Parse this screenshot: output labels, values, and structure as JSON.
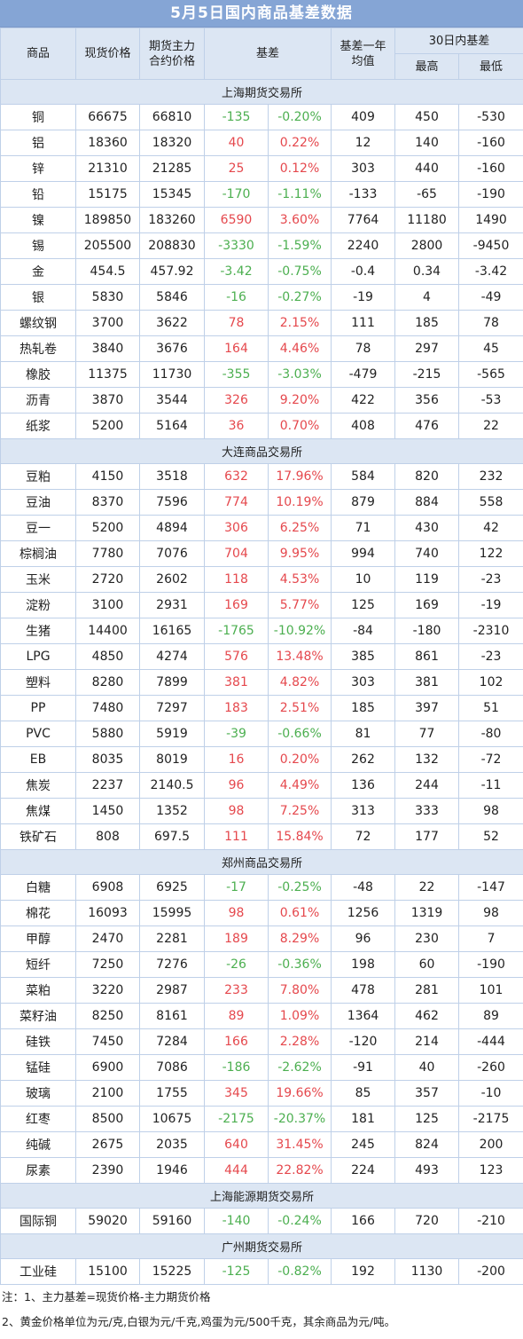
{
  "title": "5月5日国内商品基差数据",
  "header": {
    "commodity": "商品",
    "spot_price": "现货价格",
    "futures_line1": "期货主力",
    "futures_line2": "合约价格",
    "basis": "基差",
    "avg_line1": "基差一年",
    "avg_line2": "均值",
    "range30": "30日内基差",
    "high": "最高",
    "low": "最低"
  },
  "sections": [
    {
      "name": "上海期货交易所",
      "rows": [
        [
          "铜",
          "66675",
          "66810",
          "-135",
          "-0.20%",
          "409",
          "450",
          "-530"
        ],
        [
          "铝",
          "18360",
          "18320",
          "40",
          "0.22%",
          "12",
          "140",
          "-160"
        ],
        [
          "锌",
          "21310",
          "21285",
          "25",
          "0.12%",
          "303",
          "440",
          "-160"
        ],
        [
          "铅",
          "15175",
          "15345",
          "-170",
          "-1.11%",
          "-133",
          "-65",
          "-190"
        ],
        [
          "镍",
          "189850",
          "183260",
          "6590",
          "3.60%",
          "7764",
          "11180",
          "1490"
        ],
        [
          "锡",
          "205500",
          "208830",
          "-3330",
          "-1.59%",
          "2240",
          "2800",
          "-9450"
        ],
        [
          "金",
          "454.5",
          "457.92",
          "-3.42",
          "-0.75%",
          "-0.4",
          "0.34",
          "-3.42"
        ],
        [
          "银",
          "5830",
          "5846",
          "-16",
          "-0.27%",
          "-19",
          "4",
          "-49"
        ],
        [
          "螺纹钢",
          "3700",
          "3622",
          "78",
          "2.15%",
          "111",
          "185",
          "78"
        ],
        [
          "热轧卷",
          "3840",
          "3676",
          "164",
          "4.46%",
          "78",
          "297",
          "45"
        ],
        [
          "橡胶",
          "11375",
          "11730",
          "-355",
          "-3.03%",
          "-479",
          "-215",
          "-565"
        ],
        [
          "沥青",
          "3870",
          "3544",
          "326",
          "9.20%",
          "422",
          "356",
          "-53"
        ],
        [
          "纸浆",
          "5200",
          "5164",
          "36",
          "0.70%",
          "408",
          "476",
          "22"
        ]
      ]
    },
    {
      "name": "大连商品交易所",
      "rows": [
        [
          "豆粕",
          "4150",
          "3518",
          "632",
          "17.96%",
          "584",
          "820",
          "232"
        ],
        [
          "豆油",
          "8370",
          "7596",
          "774",
          "10.19%",
          "879",
          "884",
          "558"
        ],
        [
          "豆一",
          "5200",
          "4894",
          "306",
          "6.25%",
          "71",
          "430",
          "42"
        ],
        [
          "棕榈油",
          "7780",
          "7076",
          "704",
          "9.95%",
          "994",
          "740",
          "122"
        ],
        [
          "玉米",
          "2720",
          "2602",
          "118",
          "4.53%",
          "10",
          "119",
          "-23"
        ],
        [
          "淀粉",
          "3100",
          "2931",
          "169",
          "5.77%",
          "125",
          "169",
          "-19"
        ],
        [
          "生猪",
          "14400",
          "16165",
          "-1765",
          "-10.92%",
          "-84",
          "-180",
          "-2310"
        ],
        [
          "LPG",
          "4850",
          "4274",
          "576",
          "13.48%",
          "385",
          "861",
          "-23"
        ],
        [
          "塑料",
          "8280",
          "7899",
          "381",
          "4.82%",
          "303",
          "381",
          "102"
        ],
        [
          "PP",
          "7480",
          "7297",
          "183",
          "2.51%",
          "185",
          "397",
          "51"
        ],
        [
          "PVC",
          "5880",
          "5919",
          "-39",
          "-0.66%",
          "81",
          "77",
          "-80"
        ],
        [
          "EB",
          "8035",
          "8019",
          "16",
          "0.20%",
          "262",
          "132",
          "-72"
        ],
        [
          "焦炭",
          "2237",
          "2140.5",
          "96",
          "4.49%",
          "136",
          "244",
          "-11"
        ],
        [
          "焦煤",
          "1450",
          "1352",
          "98",
          "7.25%",
          "313",
          "333",
          "98"
        ],
        [
          "铁矿石",
          "808",
          "697.5",
          "111",
          "15.84%",
          "72",
          "177",
          "52"
        ]
      ]
    },
    {
      "name": "郑州商品交易所",
      "rows": [
        [
          "白糖",
          "6908",
          "6925",
          "-17",
          "-0.25%",
          "-48",
          "22",
          "-147"
        ],
        [
          "棉花",
          "16093",
          "15995",
          "98",
          "0.61%",
          "1256",
          "1319",
          "98"
        ],
        [
          "甲醇",
          "2470",
          "2281",
          "189",
          "8.29%",
          "96",
          "230",
          "7"
        ],
        [
          "短纤",
          "7250",
          "7276",
          "-26",
          "-0.36%",
          "198",
          "60",
          "-190"
        ],
        [
          "菜粕",
          "3220",
          "2987",
          "233",
          "7.80%",
          "478",
          "281",
          "101"
        ],
        [
          "菜籽油",
          "8250",
          "8161",
          "89",
          "1.09%",
          "1364",
          "462",
          "89"
        ],
        [
          "硅铁",
          "7450",
          "7284",
          "166",
          "2.28%",
          "-120",
          "214",
          "-444"
        ],
        [
          "锰硅",
          "6900",
          "7086",
          "-186",
          "-2.62%",
          "-91",
          "40",
          "-260"
        ],
        [
          "玻璃",
          "2100",
          "1755",
          "345",
          "19.66%",
          "85",
          "357",
          "-10"
        ],
        [
          "红枣",
          "8500",
          "10675",
          "-2175",
          "-20.37%",
          "181",
          "125",
          "-2175"
        ],
        [
          "纯碱",
          "2675",
          "2035",
          "640",
          "31.45%",
          "245",
          "824",
          "200"
        ],
        [
          "尿素",
          "2390",
          "1946",
          "444",
          "22.82%",
          "224",
          "493",
          "123"
        ]
      ]
    },
    {
      "name": "上海能源期货交易所",
      "rows": [
        [
          "国际铜",
          "59020",
          "59160",
          "-140",
          "-0.24%",
          "166",
          "720",
          "-210"
        ]
      ]
    },
    {
      "name": "广州期货交易所",
      "rows": [
        [
          "工业硅",
          "15100",
          "15225",
          "-125",
          "-0.82%",
          "192",
          "1130",
          "-200"
        ]
      ]
    }
  ],
  "notes": [
    "注：1、主力基差=现货价格-主力期货价格",
    "2、黄金价格单位为元/克,白银为元/千克,鸡蛋为元/500千克，其余商品为元/吨。"
  ],
  "colors": {
    "title_bg": "#85A5D5",
    "header_bg": "#DCE6F3",
    "border": "#BFD0E8",
    "positive_basis": "#E5484D",
    "negative_basis": "#4CAF50"
  }
}
